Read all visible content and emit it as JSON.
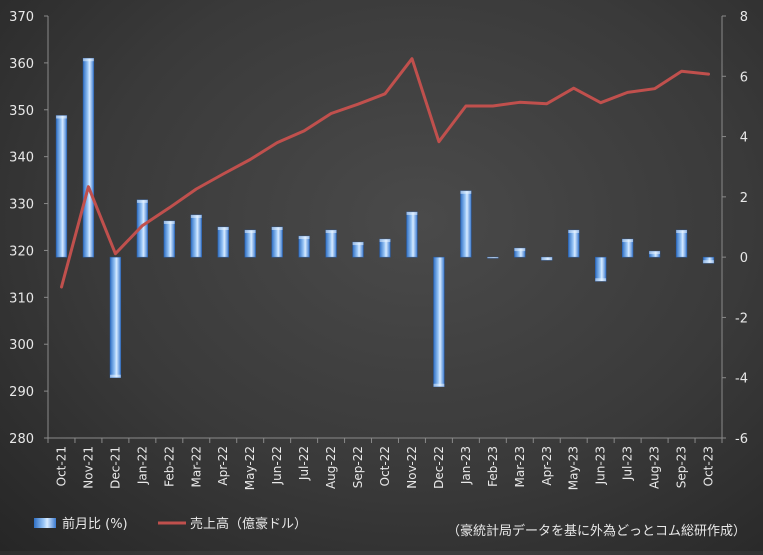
{
  "chart_data": {
    "type": "bar+line",
    "categories": [
      "Oct-21",
      "Nov-21",
      "Dec-21",
      "Jan-22",
      "Feb-22",
      "Mar-22",
      "Apr-22",
      "May-22",
      "Jun-22",
      "Jul-22",
      "Aug-22",
      "Sep-22",
      "Oct-22",
      "Nov-22",
      "Dec-22",
      "Jan-23",
      "Feb-23",
      "Mar-23",
      "Apr-23",
      "May-23",
      "Jun-23",
      "Jul-23",
      "Aug-23",
      "Sep-23",
      "Oct-23"
    ],
    "series": [
      {
        "name": "前月比 (%)",
        "kind": "bar",
        "axis": "right",
        "values": [
          4.7,
          6.6,
          -4.0,
          1.9,
          1.2,
          1.4,
          1.0,
          0.9,
          1.0,
          0.7,
          0.9,
          0.5,
          0.6,
          1.5,
          -4.3,
          2.2,
          0.0,
          0.3,
          -0.1,
          0.9,
          -0.8,
          0.6,
          0.2,
          0.9,
          -0.2
        ]
      },
      {
        "name": "売上高（億豪ドル）",
        "kind": "line",
        "axis": "left",
        "values": [
          312.2,
          333.6,
          319.3,
          325.3,
          329.1,
          333.1,
          336.3,
          339.4,
          343.0,
          345.5,
          349.2,
          351.2,
          353.4,
          360.9,
          343.2,
          350.8,
          350.8,
          351.6,
          351.3,
          354.6,
          351.5,
          353.7,
          354.5,
          358.2,
          357.6
        ]
      }
    ],
    "left_axis": {
      "min": 280,
      "max": 370,
      "step": 10,
      "ticks": [
        "370",
        "360",
        "350",
        "340",
        "330",
        "320",
        "310",
        "300",
        "290",
        "280"
      ]
    },
    "right_axis": {
      "min": -6,
      "max": 8,
      "step": 2,
      "ticks": [
        "8",
        "6",
        "4",
        "2",
        "0",
        "-2",
        "-4",
        "-6"
      ]
    },
    "grid": false,
    "legend_position": "bottom-left",
    "bar_color": "#5b9bd5",
    "line_color": "#c0504d"
  },
  "legend": {
    "bar_label": "前月比 (%)",
    "line_label": "売上高（億豪ドル）"
  },
  "source_note": "（豪統計局データを基に外為どっとコム総研作成）"
}
